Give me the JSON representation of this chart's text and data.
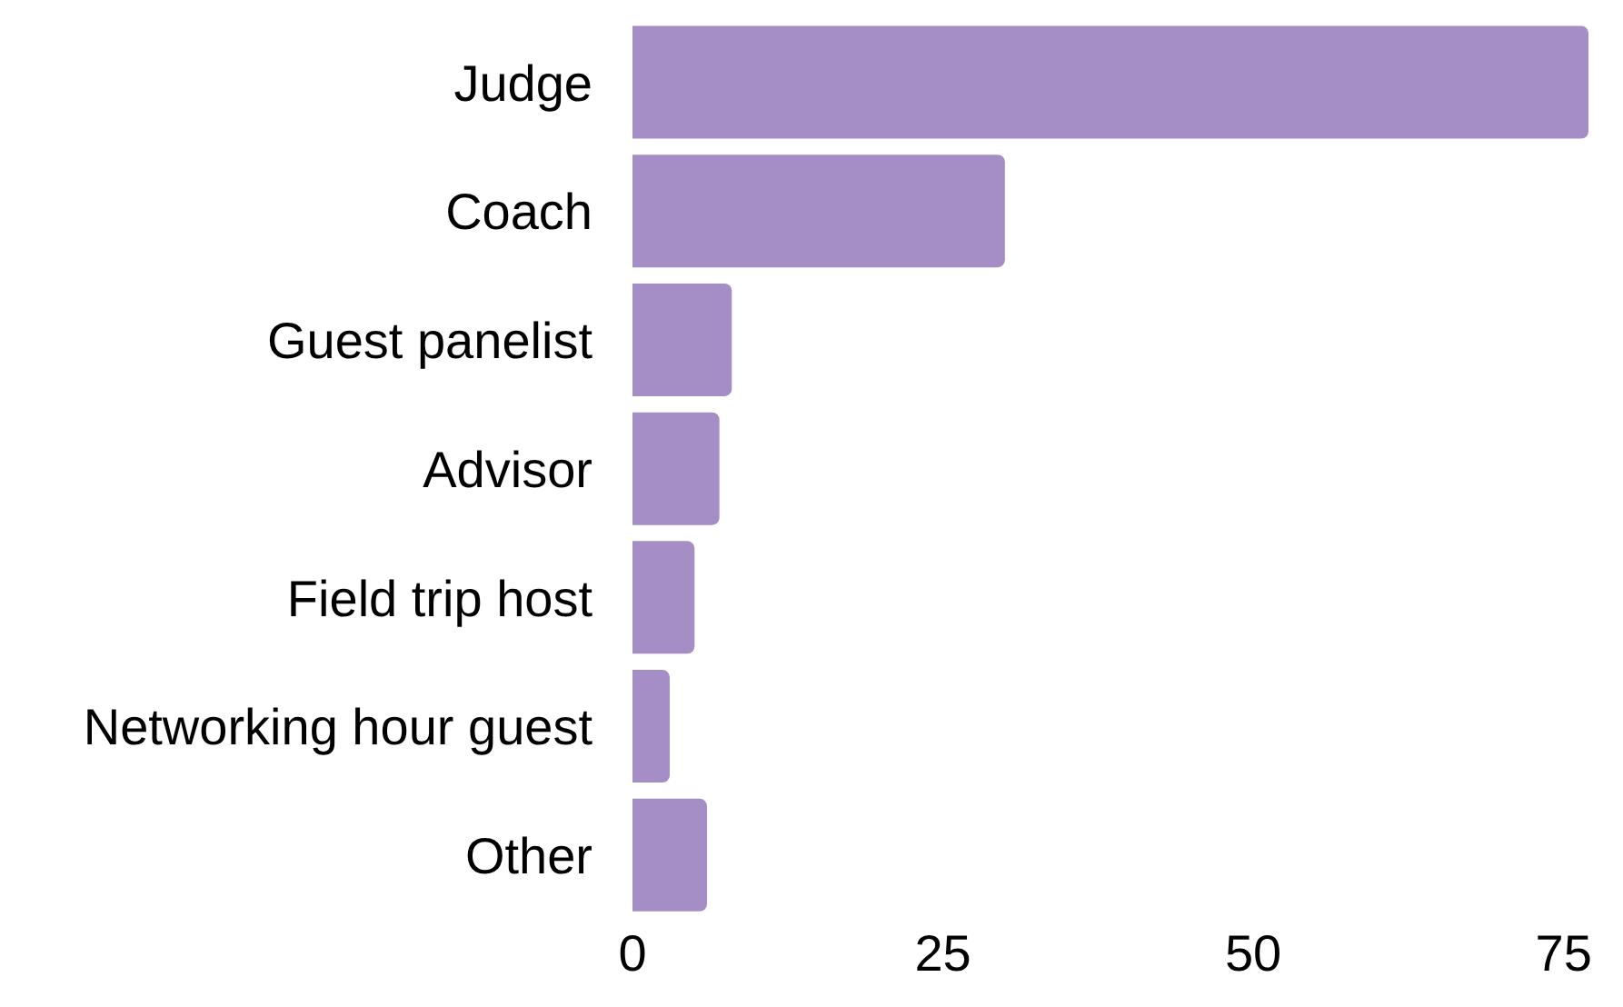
{
  "chart_data": {
    "type": "bar",
    "orientation": "horizontal",
    "categories": [
      "Judge",
      "Coach",
      "Guest panelist",
      "Advisor",
      "Field trip host",
      "Networking hour guest",
      "Other"
    ],
    "values": [
      77,
      30,
      8,
      7,
      5,
      3,
      6
    ],
    "color": "#a58ec5",
    "xlim": [
      0,
      77
    ],
    "xticks": [
      0,
      25,
      50,
      75
    ],
    "grid": false,
    "legend": false
  }
}
